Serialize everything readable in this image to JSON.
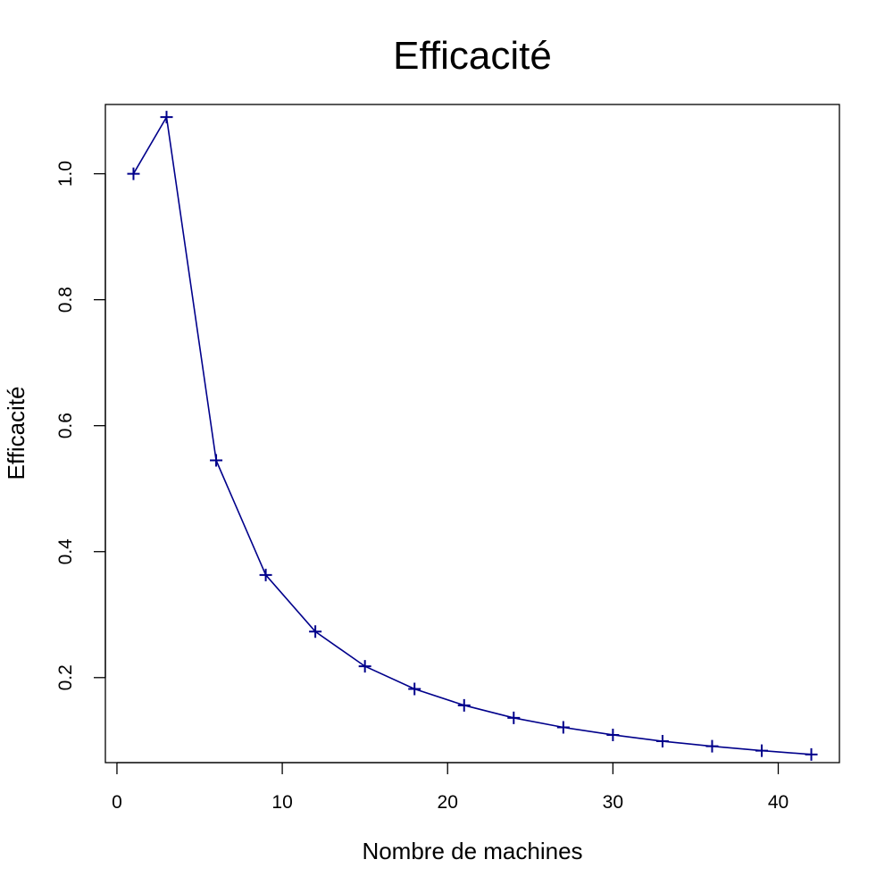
{
  "chart_data": {
    "type": "line",
    "title": "Efficacité",
    "xlabel": "Nombre de machines",
    "ylabel": "Efficacité",
    "xlim": [
      -0.7,
      43.7
    ],
    "ylim": [
      0.065,
      1.11
    ],
    "x_ticks": [
      0,
      10,
      20,
      30,
      40
    ],
    "y_ticks": [
      0.2,
      0.4,
      0.6,
      0.8,
      1.0
    ],
    "x_tick_labels": [
      "0",
      "10",
      "20",
      "30",
      "40"
    ],
    "y_tick_labels": [
      "0.2",
      "0.4",
      "0.6",
      "0.8",
      "1.0"
    ],
    "grid": false,
    "marker": "plus",
    "series": [
      {
        "color": "#00008B",
        "x": [
          1,
          3,
          6,
          9,
          12,
          15,
          18,
          21,
          24,
          27,
          30,
          33,
          36,
          39,
          42
        ],
        "y": [
          1.0,
          1.09,
          0.545,
          0.363,
          0.273,
          0.218,
          0.182,
          0.156,
          0.136,
          0.121,
          0.109,
          0.099,
          0.091,
          0.084,
          0.078
        ]
      }
    ]
  }
}
